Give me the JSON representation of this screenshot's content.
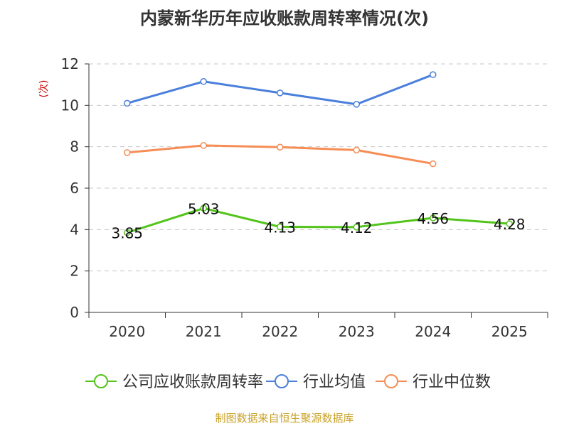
{
  "chart_data": {
    "type": "line",
    "title": "内蒙新华历年应收账款周转率情况(次)",
    "ylabel": "(次)",
    "xlabel": "",
    "ylim": [
      0,
      12
    ],
    "yticks": [
      0,
      2,
      4,
      6,
      8,
      10,
      12
    ],
    "categories": [
      "2020",
      "2021",
      "2022",
      "2023",
      "2024",
      "2025"
    ],
    "grid": true,
    "legend_position": "bottom",
    "series": [
      {
        "name": "公司应收账款周转率",
        "color": "#52c41a",
        "values": [
          3.85,
          5.03,
          4.13,
          4.12,
          4.56,
          4.28
        ],
        "labels": [
          "3.85",
          "5.03",
          "4.13",
          "4.12",
          "4.56",
          "4.28"
        ]
      },
      {
        "name": "行业均值",
        "color": "#4a7fdb",
        "values": [
          10.1,
          11.15,
          10.6,
          10.05,
          11.48,
          null
        ]
      },
      {
        "name": "行业中位数",
        "color": "#f58d55",
        "values": [
          7.72,
          8.06,
          7.98,
          7.84,
          7.18,
          null
        ]
      }
    ]
  },
  "source_text": "制图数据来自恒生聚源数据库"
}
